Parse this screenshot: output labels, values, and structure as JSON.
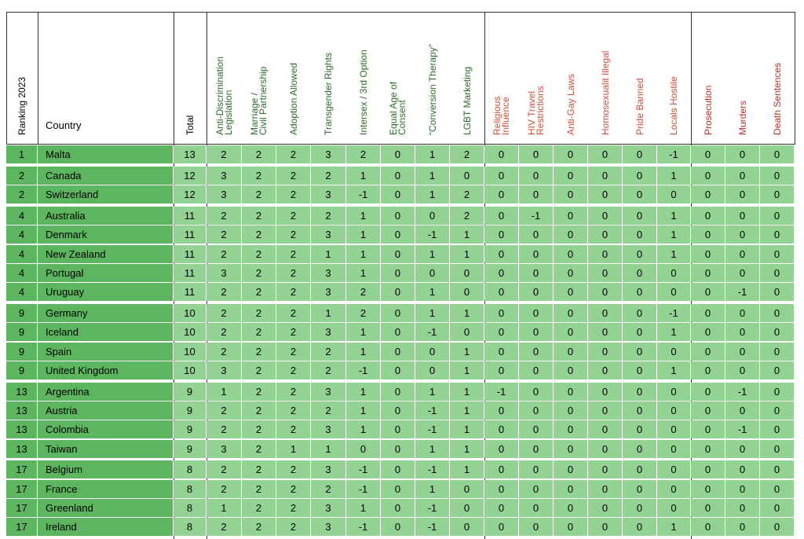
{
  "table": {
    "columns": [
      {
        "lines": [
          "Ranking 2023"
        ]
      },
      {
        "lines": [
          "Country"
        ]
      },
      {
        "lines": [
          "Total"
        ]
      },
      {
        "lines": [
          "Anti-Discrimination",
          "Legislation"
        ]
      },
      {
        "lines": [
          "Marriage /",
          "Civil Partnership"
        ]
      },
      {
        "lines": [
          "Adoption Allowed"
        ]
      },
      {
        "lines": [
          "Transgender Rights"
        ]
      },
      {
        "lines": [
          "Intersex / 3rd Option"
        ]
      },
      {
        "lines": [
          "Equal Age of",
          "Consent"
        ]
      },
      {
        "lines": [
          "“Conversion Therapy”"
        ]
      },
      {
        "lines": [
          "LGBT Marketing"
        ]
      },
      {
        "lines": [
          "Religious",
          "Influence"
        ]
      },
      {
        "lines": [
          "HIV Travel",
          "Restrictions"
        ]
      },
      {
        "lines": [
          "Anti-Gay Laws"
        ]
      },
      {
        "lines": [
          "Homosexualit Illegal"
        ]
      },
      {
        "lines": [
          "Pride Banned"
        ]
      },
      {
        "lines": [
          "Locals Hostile"
        ]
      },
      {
        "lines": [
          "Prosecution"
        ]
      },
      {
        "lines": [
          "Murders"
        ]
      },
      {
        "lines": [
          "Death Sentences"
        ]
      }
    ],
    "rows": [
      [
        1,
        "Malta",
        13,
        2,
        2,
        2,
        3,
        2,
        0,
        1,
        2,
        0,
        0,
        0,
        0,
        0,
        -1,
        0,
        0,
        0
      ],
      [
        2,
        "Canada",
        12,
        3,
        2,
        2,
        2,
        1,
        0,
        1,
        0,
        0,
        0,
        0,
        0,
        0,
        1,
        0,
        0,
        0
      ],
      [
        2,
        "Switzerland",
        12,
        3,
        2,
        2,
        3,
        -1,
        0,
        1,
        2,
        0,
        0,
        0,
        0,
        0,
        0,
        0,
        0,
        0
      ],
      [
        4,
        "Australia",
        11,
        2,
        2,
        2,
        2,
        1,
        0,
        0,
        2,
        0,
        -1,
        0,
        0,
        0,
        1,
        0,
        0,
        0
      ],
      [
        4,
        "Denmark",
        11,
        2,
        2,
        2,
        3,
        1,
        0,
        -1,
        1,
        0,
        0,
        0,
        0,
        0,
        1,
        0,
        0,
        0
      ],
      [
        4,
        "New Zealand",
        11,
        2,
        2,
        2,
        1,
        1,
        0,
        1,
        1,
        0,
        0,
        0,
        0,
        0,
        1,
        0,
        0,
        0
      ],
      [
        4,
        "Portugal",
        11,
        3,
        2,
        2,
        3,
        1,
        0,
        0,
        0,
        0,
        0,
        0,
        0,
        0,
        0,
        0,
        0,
        0
      ],
      [
        4,
        "Uruguay",
        11,
        2,
        2,
        2,
        3,
        2,
        0,
        1,
        0,
        0,
        0,
        0,
        0,
        0,
        0,
        0,
        -1,
        0
      ],
      [
        9,
        "Germany",
        10,
        2,
        2,
        2,
        1,
        2,
        0,
        1,
        1,
        0,
        0,
        0,
        0,
        0,
        -1,
        0,
        0,
        0
      ],
      [
        9,
        "Iceland",
        10,
        2,
        2,
        2,
        3,
        1,
        0,
        -1,
        0,
        0,
        0,
        0,
        0,
        0,
        1,
        0,
        0,
        0
      ],
      [
        9,
        "Spain",
        10,
        2,
        2,
        2,
        2,
        1,
        0,
        0,
        1,
        0,
        0,
        0,
        0,
        0,
        0,
        0,
        0,
        0
      ],
      [
        9,
        "United Kingdom",
        10,
        3,
        2,
        2,
        2,
        -1,
        0,
        0,
        1,
        0,
        0,
        0,
        0,
        0,
        1,
        0,
        0,
        0
      ],
      [
        13,
        "Argentina",
        9,
        1,
        2,
        2,
        3,
        1,
        0,
        1,
        1,
        -1,
        0,
        0,
        0,
        0,
        0,
        0,
        -1,
        0
      ],
      [
        13,
        "Austria",
        9,
        2,
        2,
        2,
        2,
        1,
        0,
        -1,
        1,
        0,
        0,
        0,
        0,
        0,
        0,
        0,
        0,
        0
      ],
      [
        13,
        "Colombia",
        9,
        2,
        2,
        2,
        3,
        1,
        0,
        -1,
        1,
        0,
        0,
        0,
        0,
        0,
        0,
        0,
        -1,
        0
      ],
      [
        13,
        "Taiwan",
        9,
        3,
        2,
        1,
        1,
        0,
        0,
        1,
        1,
        0,
        0,
        0,
        0,
        0,
        0,
        0,
        0,
        0
      ],
      [
        17,
        "Belgium",
        8,
        2,
        2,
        2,
        3,
        -1,
        0,
        -1,
        1,
        0,
        0,
        0,
        0,
        0,
        0,
        0,
        0,
        0
      ],
      [
        17,
        "France",
        8,
        2,
        2,
        2,
        2,
        -1,
        0,
        1,
        0,
        0,
        0,
        0,
        0,
        0,
        0,
        0,
        0,
        0
      ],
      [
        17,
        "Greenland",
        8,
        1,
        2,
        2,
        3,
        1,
        0,
        -1,
        0,
        0,
        0,
        0,
        0,
        0,
        0,
        0,
        0,
        0
      ],
      [
        17,
        "Ireland",
        8,
        2,
        2,
        2,
        3,
        -1,
        0,
        -1,
        0,
        0,
        0,
        0,
        0,
        0,
        1,
        0,
        0,
        0
      ]
    ]
  }
}
